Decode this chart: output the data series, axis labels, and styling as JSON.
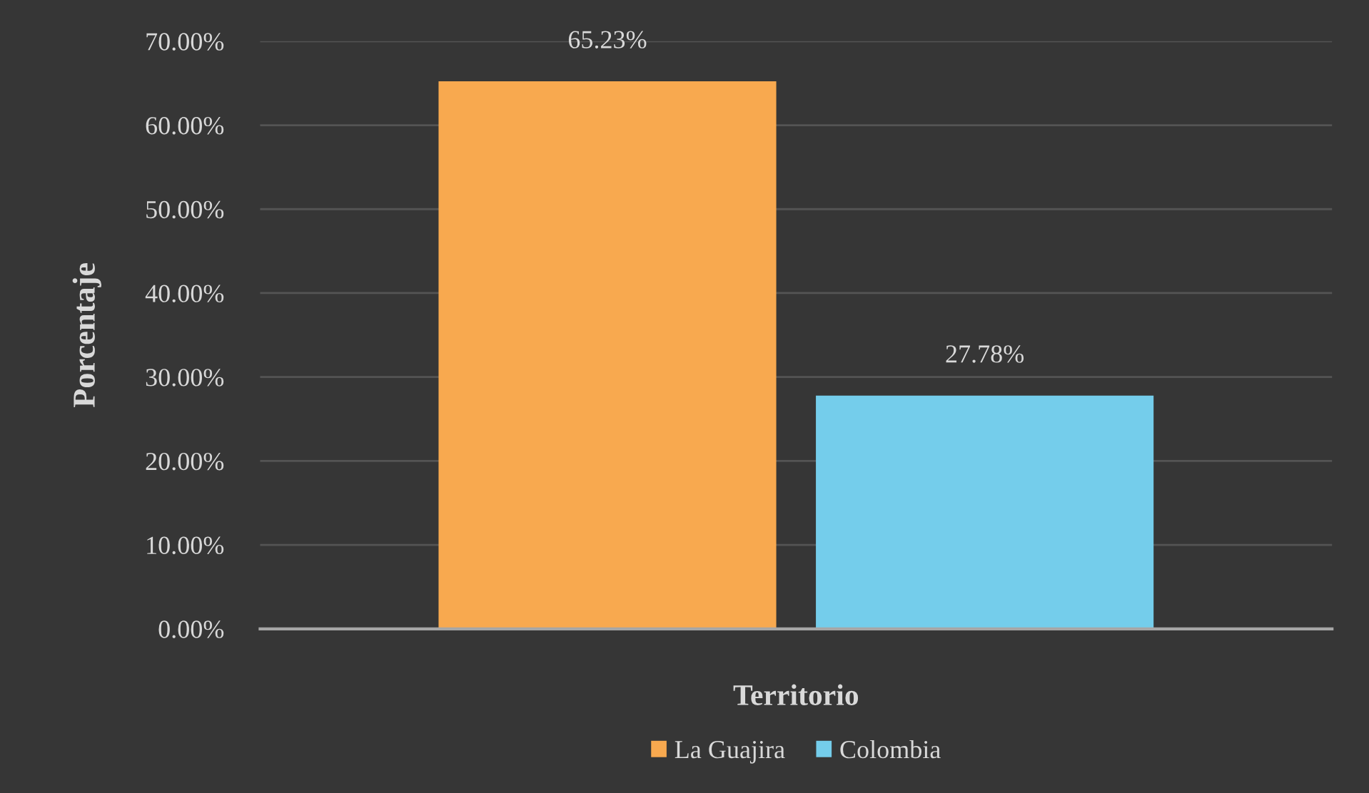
{
  "chart_data": {
    "type": "bar",
    "xlabel": "Territorio",
    "ylabel": "Porcentaje",
    "categories": [
      null
    ],
    "series": [
      {
        "name": "La Guajira",
        "color": "#f8a94f",
        "values": [
          65.23
        ],
        "value_labels": [
          "65.23%"
        ]
      },
      {
        "name": "Colombia",
        "color": "#74cdeb",
        "values": [
          27.78
        ],
        "value_labels": [
          "27.78%"
        ]
      }
    ],
    "ylim": [
      0,
      70
    ],
    "yticks": [
      {
        "value": 0,
        "label": "0.00%"
      },
      {
        "value": 10,
        "label": "10.00%"
      },
      {
        "value": 20,
        "label": "20.00%"
      },
      {
        "value": 30,
        "label": "30.00%"
      },
      {
        "value": 40,
        "label": "40.00%"
      },
      {
        "value": 50,
        "label": "50.00%"
      },
      {
        "value": 60,
        "label": "60.00%"
      },
      {
        "value": 70,
        "label": "70.00%"
      }
    ],
    "grid": "y",
    "legend": "bottom"
  }
}
